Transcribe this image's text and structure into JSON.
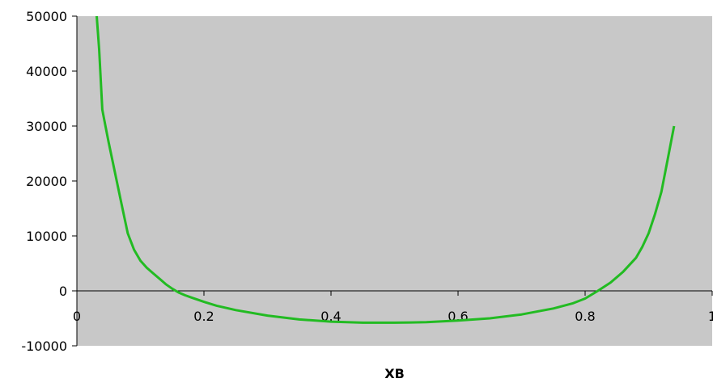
{
  "chart_data": {
    "type": "line",
    "title": "",
    "xlabel": "XB",
    "ylabel": "",
    "xlim": [
      0,
      1
    ],
    "ylim": [
      -10000,
      50000
    ],
    "xticks": [
      0,
      0.2,
      0.4,
      0.6,
      0.8,
      1
    ],
    "xtick_labels": [
      "0",
      "0.2",
      "0.4",
      "0.6",
      "0.8",
      "1"
    ],
    "yticks": [
      -10000,
      0,
      10000,
      20000,
      30000,
      40000,
      50000
    ],
    "ytick_labels": [
      "-10000",
      "0",
      "10000",
      "20000",
      "30000",
      "40000",
      "50000"
    ],
    "grid": false,
    "background_color": "#c8c8c8",
    "series": [
      {
        "color": "#22bb22",
        "x": [
          0.03,
          0.035,
          0.04,
          0.045,
          0.05,
          0.06,
          0.07,
          0.08,
          0.09,
          0.1,
          0.11,
          0.12,
          0.13,
          0.14,
          0.15,
          0.16,
          0.17,
          0.18,
          0.2,
          0.22,
          0.25,
          0.3,
          0.35,
          0.4,
          0.45,
          0.5,
          0.55,
          0.6,
          0.65,
          0.7,
          0.75,
          0.78,
          0.8,
          0.82,
          0.84,
          0.86,
          0.88,
          0.89,
          0.9,
          0.91,
          0.92,
          0.93,
          0.94
        ],
        "y": [
          52000,
          44000,
          33000,
          30000,
          27000,
          21500,
          16000,
          10500,
          7500,
          5500,
          4200,
          3200,
          2200,
          1200,
          400,
          -300,
          -800,
          -1200,
          -2000,
          -2700,
          -3500,
          -4500,
          -5200,
          -5600,
          -5800,
          -5800,
          -5700,
          -5400,
          -5000,
          -4300,
          -3200,
          -2300,
          -1400,
          0,
          1500,
          3500,
          6000,
          8000,
          10500,
          14000,
          18000,
          24000,
          30000
        ]
      }
    ]
  }
}
